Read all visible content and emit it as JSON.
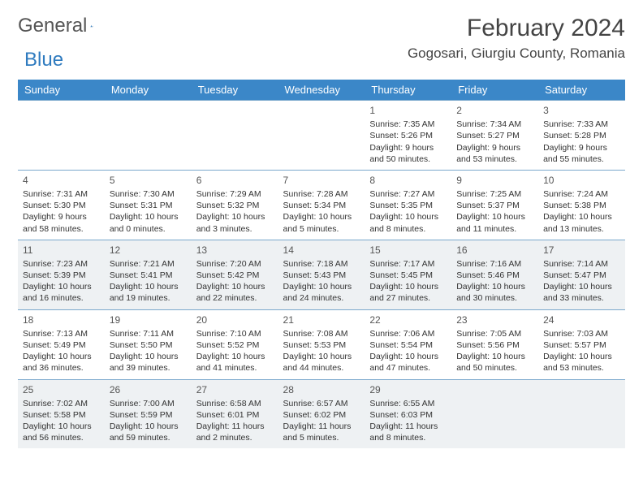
{
  "logo": {
    "word1": "General",
    "word2": "Blue"
  },
  "title": "February 2024",
  "location": "Gogosari, Giurgiu County, Romania",
  "colors": {
    "header_bg": "#3b87c8",
    "header_text": "#ffffff",
    "alt_row_bg": "#eef1f3",
    "border": "#7aa8cc",
    "text": "#333333",
    "logo_gray": "#555555",
    "logo_blue": "#2f7bbf"
  },
  "weekdays": [
    "Sunday",
    "Monday",
    "Tuesday",
    "Wednesday",
    "Thursday",
    "Friday",
    "Saturday"
  ],
  "grid": [
    [
      null,
      null,
      null,
      null,
      {
        "n": "1",
        "sr": "7:35 AM",
        "ss": "5:26 PM",
        "dl": "9 hours and 50 minutes."
      },
      {
        "n": "2",
        "sr": "7:34 AM",
        "ss": "5:27 PM",
        "dl": "9 hours and 53 minutes."
      },
      {
        "n": "3",
        "sr": "7:33 AM",
        "ss": "5:28 PM",
        "dl": "9 hours and 55 minutes."
      }
    ],
    [
      {
        "n": "4",
        "sr": "7:31 AM",
        "ss": "5:30 PM",
        "dl": "9 hours and 58 minutes."
      },
      {
        "n": "5",
        "sr": "7:30 AM",
        "ss": "5:31 PM",
        "dl": "10 hours and 0 minutes."
      },
      {
        "n": "6",
        "sr": "7:29 AM",
        "ss": "5:32 PM",
        "dl": "10 hours and 3 minutes."
      },
      {
        "n": "7",
        "sr": "7:28 AM",
        "ss": "5:34 PM",
        "dl": "10 hours and 5 minutes."
      },
      {
        "n": "8",
        "sr": "7:27 AM",
        "ss": "5:35 PM",
        "dl": "10 hours and 8 minutes."
      },
      {
        "n": "9",
        "sr": "7:25 AM",
        "ss": "5:37 PM",
        "dl": "10 hours and 11 minutes."
      },
      {
        "n": "10",
        "sr": "7:24 AM",
        "ss": "5:38 PM",
        "dl": "10 hours and 13 minutes."
      }
    ],
    [
      {
        "n": "11",
        "sr": "7:23 AM",
        "ss": "5:39 PM",
        "dl": "10 hours and 16 minutes."
      },
      {
        "n": "12",
        "sr": "7:21 AM",
        "ss": "5:41 PM",
        "dl": "10 hours and 19 minutes."
      },
      {
        "n": "13",
        "sr": "7:20 AM",
        "ss": "5:42 PM",
        "dl": "10 hours and 22 minutes."
      },
      {
        "n": "14",
        "sr": "7:18 AM",
        "ss": "5:43 PM",
        "dl": "10 hours and 24 minutes."
      },
      {
        "n": "15",
        "sr": "7:17 AM",
        "ss": "5:45 PM",
        "dl": "10 hours and 27 minutes."
      },
      {
        "n": "16",
        "sr": "7:16 AM",
        "ss": "5:46 PM",
        "dl": "10 hours and 30 minutes."
      },
      {
        "n": "17",
        "sr": "7:14 AM",
        "ss": "5:47 PM",
        "dl": "10 hours and 33 minutes."
      }
    ],
    [
      {
        "n": "18",
        "sr": "7:13 AM",
        "ss": "5:49 PM",
        "dl": "10 hours and 36 minutes."
      },
      {
        "n": "19",
        "sr": "7:11 AM",
        "ss": "5:50 PM",
        "dl": "10 hours and 39 minutes."
      },
      {
        "n": "20",
        "sr": "7:10 AM",
        "ss": "5:52 PM",
        "dl": "10 hours and 41 minutes."
      },
      {
        "n": "21",
        "sr": "7:08 AM",
        "ss": "5:53 PM",
        "dl": "10 hours and 44 minutes."
      },
      {
        "n": "22",
        "sr": "7:06 AM",
        "ss": "5:54 PM",
        "dl": "10 hours and 47 minutes."
      },
      {
        "n": "23",
        "sr": "7:05 AM",
        "ss": "5:56 PM",
        "dl": "10 hours and 50 minutes."
      },
      {
        "n": "24",
        "sr": "7:03 AM",
        "ss": "5:57 PM",
        "dl": "10 hours and 53 minutes."
      }
    ],
    [
      {
        "n": "25",
        "sr": "7:02 AM",
        "ss": "5:58 PM",
        "dl": "10 hours and 56 minutes."
      },
      {
        "n": "26",
        "sr": "7:00 AM",
        "ss": "5:59 PM",
        "dl": "10 hours and 59 minutes."
      },
      {
        "n": "27",
        "sr": "6:58 AM",
        "ss": "6:01 PM",
        "dl": "11 hours and 2 minutes."
      },
      {
        "n": "28",
        "sr": "6:57 AM",
        "ss": "6:02 PM",
        "dl": "11 hours and 5 minutes."
      },
      {
        "n": "29",
        "sr": "6:55 AM",
        "ss": "6:03 PM",
        "dl": "11 hours and 8 minutes."
      },
      null,
      null
    ]
  ],
  "labels": {
    "sunrise": "Sunrise:",
    "sunset": "Sunset:",
    "daylight": "Daylight:"
  }
}
